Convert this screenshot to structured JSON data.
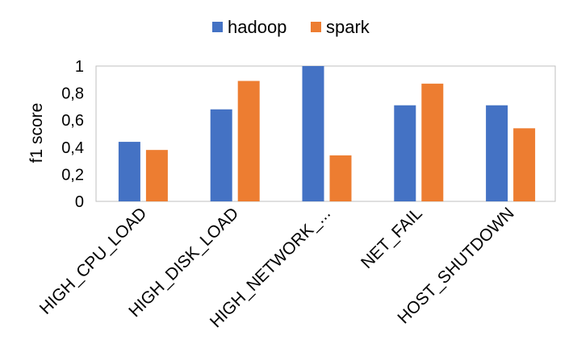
{
  "chart_data": {
    "type": "bar",
    "categories": [
      "HIGH_CPU_LOAD",
      "HIGH_DISK_LOAD",
      "HIGH_NETWORK_...",
      "NET_FAIL",
      "HOST_SHUTDOWN"
    ],
    "series": [
      {
        "name": "hadoop",
        "color": "#4472c4",
        "values": [
          0.44,
          0.68,
          1.0,
          0.71,
          0.71
        ]
      },
      {
        "name": "spark",
        "color": "#ed7d31",
        "values": [
          0.38,
          0.89,
          0.34,
          0.87,
          0.54
        ]
      }
    ],
    "ylabel": "f1 score",
    "xlabel": "",
    "ylim": [
      0,
      1
    ],
    "yticks": [
      "0",
      "0,2",
      "0,4",
      "0,6",
      "0,8",
      "1"
    ],
    "grid": false,
    "legend": "top-center"
  }
}
